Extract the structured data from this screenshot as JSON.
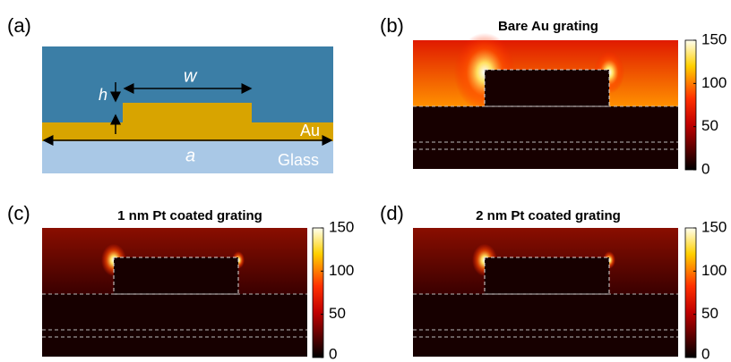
{
  "panel_a": {
    "label": "(a)",
    "h_label": "h",
    "w_label": "w",
    "au_label": "Au",
    "a_label": "a",
    "glass_label": "Glass"
  },
  "panels": [
    {
      "label": "(b)",
      "title": "Bare Au grating",
      "colorbar": {
        "lim": [
          0,
          150
        ],
        "ticks": [
          0,
          50,
          100,
          150
        ]
      }
    },
    {
      "label": "(c)",
      "title": "1 nm Pt coated grating",
      "colorbar": {
        "lim": [
          0,
          150
        ],
        "ticks": [
          0,
          50,
          100,
          150
        ]
      }
    },
    {
      "label": "(d)",
      "title": "2 nm Pt coated grating",
      "colorbar": {
        "lim": [
          0,
          150
        ],
        "ticks": [
          0,
          50,
          100,
          150
        ]
      }
    }
  ]
}
